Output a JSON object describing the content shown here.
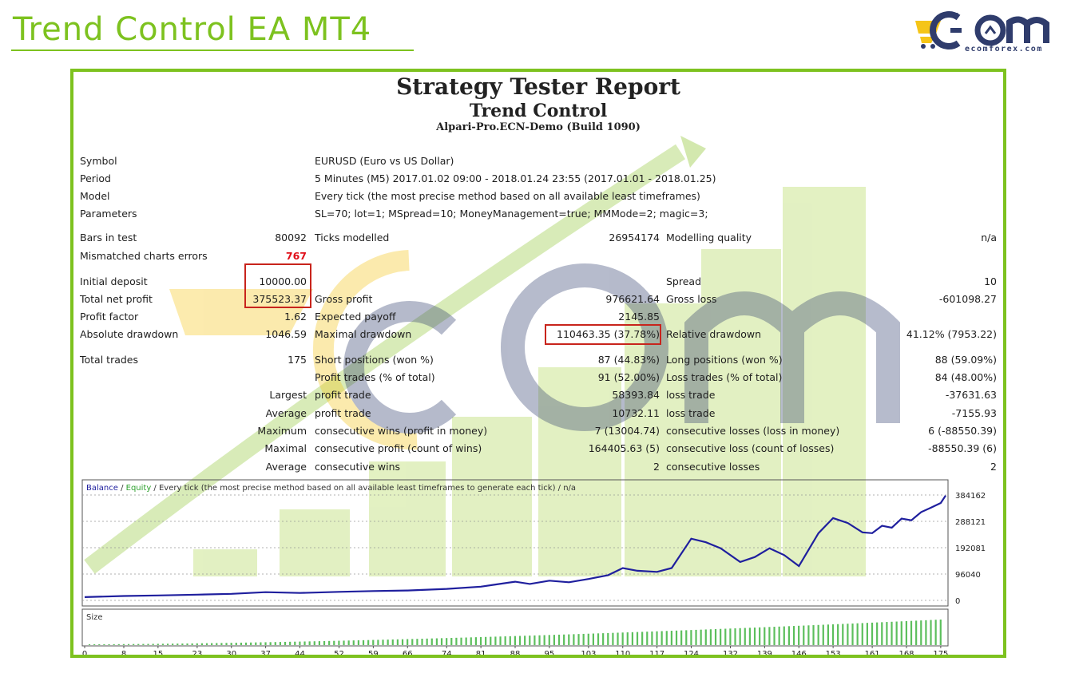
{
  "page_title": "Trend Control EA MT4",
  "brand": {
    "url_text": "ecomforex.com",
    "primary_color": "#2f3c6c",
    "accent_color": "#f5c518",
    "green": "#7dc21f"
  },
  "report": {
    "title": "Strategy Tester Report",
    "ea_name": "Trend Control",
    "server": "Alpari-Pro.ECN-Demo (Build 1090)",
    "info": [
      {
        "label": "Symbol",
        "value": "EURUSD (Euro vs US Dollar)"
      },
      {
        "label": "Period",
        "value": "5 Minutes (M5) 2017.01.02 09:00 - 2018.01.24 23:55 (2017.01.01 - 2018.01.25)"
      },
      {
        "label": "Model",
        "value": "Every tick (the most precise method based on all available least timeframes)"
      },
      {
        "label": "Parameters",
        "value": "SL=70; lot=1; MSpread=10; MoneyManagement=true; MMMode=2; magic=3;"
      }
    ],
    "bars_label": "Bars in test",
    "bars_value": "80092",
    "ticks_label": "Ticks modelled",
    "ticks_value": "26954174",
    "quality_label": "Modelling quality",
    "quality_value": "n/a",
    "mismatch_label": "Mismatched charts errors",
    "mismatch_value": "767",
    "deposit_label": "Initial deposit",
    "deposit_value": "10000.00",
    "spread_label": "Spread",
    "spread_value": "10",
    "netprofit_label": "Total net profit",
    "netprofit_value": "375523.37",
    "grossprofit_label": "Gross profit",
    "grossprofit_value": "976621.64",
    "grossloss_label": "Gross loss",
    "grossloss_value": "-601098.27",
    "pf_label": "Profit factor",
    "pf_value": "1.62",
    "payoff_label": "Expected payoff",
    "payoff_value": "2145.85",
    "absdd_label": "Absolute drawdown",
    "absdd_value": "1046.59",
    "maxdd_label": "Maximal drawdown",
    "maxdd_value": "110463.35 (37.78%)",
    "reldd_label": "Relative drawdown",
    "reldd_value": "41.12% (7953.22)",
    "trades_label": "Total trades",
    "trades_value": "175",
    "short_label": "Short positions (won %)",
    "short_value": "87 (44.83%)",
    "long_label": "Long positions (won %)",
    "long_value": "88 (59.09%)",
    "ptrades_label": "Profit trades (% of total)",
    "ptrades_value": "91 (52.00%)",
    "ltrades_label": "Loss trades (% of total)",
    "ltrades_value": "84 (48.00%)",
    "largest_label": "Largest",
    "largest_pt_label": "profit trade",
    "largest_pt_value": "58393.84",
    "largest_lt_label": "loss trade",
    "largest_lt_value": "-37631.63",
    "average_label": "Average",
    "average_pt_label": "profit trade",
    "average_pt_value": "10732.11",
    "average_lt_label": "loss trade",
    "average_lt_value": "-7155.93",
    "maximum_label": "Maximum",
    "max_cw_label": "consecutive wins (profit in money)",
    "max_cw_value": "7 (13004.74)",
    "max_cl_label": "consecutive losses (loss in money)",
    "max_cl_value": "6 (-88550.39)",
    "maximal_label": "Maximal",
    "mxl_cp_label": "consecutive profit (count of wins)",
    "mxl_cp_value": "164405.63 (5)",
    "mxl_cl_label": "consecutive loss (count of losses)",
    "mxl_cl_value": "-88550.39 (6)",
    "avg2_label": "Average",
    "avg_cw_label": "consecutive wins",
    "avg_cw_value": "2",
    "avg_cl_label": "consecutive losses",
    "avg_cl_value": "2"
  },
  "chart": {
    "legend_balance": "Balance",
    "legend_sep1": " / ",
    "legend_equity": "Equity",
    "legend_rest": " / Every tick (the most precise method based on all available least timeframes to generate each tick) / n/a",
    "size_label": "Size",
    "balance_color": "#1f1f9e",
    "equity_color": "#2ca02c",
    "y_ticks": [
      "384162",
      "288121",
      "192081",
      "96040",
      "0"
    ],
    "x_ticks": [
      "0",
      "8",
      "15",
      "23",
      "30",
      "37",
      "44",
      "52",
      "59",
      "66",
      "74",
      "81",
      "88",
      "95",
      "103",
      "110",
      "117",
      "124",
      "132",
      "139",
      "146",
      "153",
      "161",
      "168",
      "175"
    ]
  },
  "chart_data": {
    "type": "line",
    "xlabel": "",
    "ylabel": "",
    "xlim": [
      0,
      176
    ],
    "ylim": [
      0,
      400000
    ],
    "series": [
      {
        "name": "Balance",
        "x": [
          0,
          8,
          15,
          23,
          30,
          37,
          44,
          52,
          59,
          66,
          74,
          81,
          84,
          88,
          91,
          95,
          99,
          103,
          107,
          110,
          113,
          117,
          120,
          124,
          127,
          130,
          134,
          137,
          140,
          143,
          146,
          150,
          153,
          156,
          159,
          161,
          163,
          165,
          167,
          169,
          171,
          173,
          175,
          176
        ],
        "y": [
          12000,
          16000,
          18000,
          21000,
          24000,
          30000,
          27000,
          31000,
          34000,
          36000,
          42000,
          50000,
          58000,
          68000,
          60000,
          72000,
          66000,
          78000,
          92000,
          118000,
          108000,
          104000,
          118000,
          225000,
          212000,
          190000,
          140000,
          158000,
          190000,
          165000,
          125000,
          245000,
          300000,
          282000,
          248000,
          245000,
          272000,
          265000,
          298000,
          292000,
          322000,
          338000,
          355000,
          382000
        ]
      }
    ],
    "size_bars_note": ""
  }
}
